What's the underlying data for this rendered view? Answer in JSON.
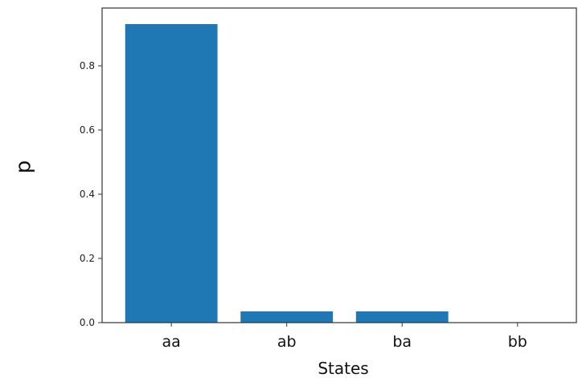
{
  "chart_data": {
    "type": "bar",
    "categories": [
      "aa",
      "ab",
      "ba",
      "bb"
    ],
    "values": [
      0.93,
      0.035,
      0.035,
      0.0
    ],
    "xlabel": "States",
    "ylabel": "p",
    "ylim": [
      0,
      0.98
    ],
    "yticks": [
      0.0,
      0.2,
      0.4,
      0.6,
      0.8
    ],
    "ytick_labels": [
      "0.0",
      "0.2",
      "0.4",
      "0.6",
      "0.8"
    ],
    "grid": false,
    "colors": {
      "bar": "#1f77b4",
      "axis": "#333333"
    }
  }
}
